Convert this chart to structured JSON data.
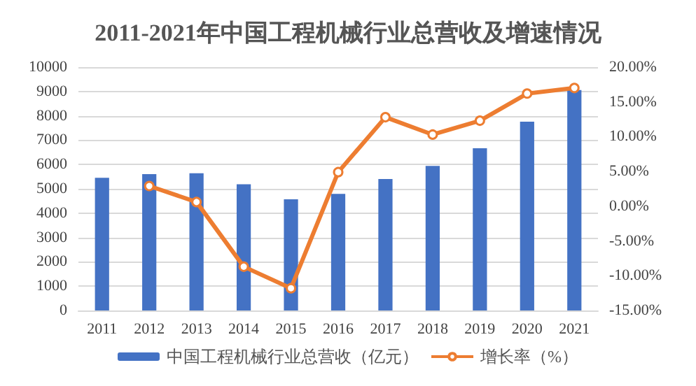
{
  "chart_data": {
    "type": "bar",
    "title": "2011-2021年中国工程机械行业总营收及增速情况",
    "categories": [
      "2011",
      "2012",
      "2013",
      "2014",
      "2015",
      "2016",
      "2017",
      "2018",
      "2019",
      "2020",
      "2021"
    ],
    "series": [
      {
        "name": "中国工程机械行业总营收（亿元）",
        "color": "#4472c4",
        "values": [
          5450,
          5600,
          5640,
          5190,
          4570,
          4790,
          5400,
          5940,
          6670,
          7760,
          9060
        ]
      },
      {
        "name": "增长率（%）",
        "type": "line",
        "axis": "y2",
        "color": "#ed7d31",
        "marker": "circle",
        "values": [
          null,
          2.9,
          0.6,
          -8.7,
          -11.8,
          4.9,
          12.8,
          10.3,
          12.3,
          16.2,
          17.0
        ]
      }
    ],
    "ylim": [
      0,
      10000
    ],
    "yticks": [
      0,
      1000,
      2000,
      3000,
      4000,
      5000,
      6000,
      7000,
      8000,
      9000,
      10000
    ],
    "y2lim": [
      -15,
      20
    ],
    "y2ticks": [
      {
        "value": -15,
        "label": "-15.00%"
      },
      {
        "value": -10,
        "label": "-10.00%"
      },
      {
        "value": -5,
        "label": "-5.00%"
      },
      {
        "value": 0,
        "label": "0.00%"
      },
      {
        "value": 5,
        "label": "5.00%"
      },
      {
        "value": 10,
        "label": "10.00%"
      },
      {
        "value": 15,
        "label": "15.00%"
      },
      {
        "value": 20,
        "label": "20.00%"
      }
    ],
    "grid": "y",
    "legend": "bottom"
  }
}
